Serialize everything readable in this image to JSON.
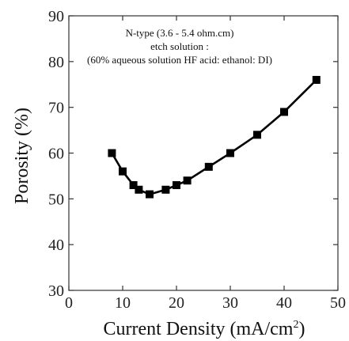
{
  "chart_data": {
    "type": "line",
    "title": "",
    "xlabel": "Current Density (mA/cm",
    "xlabel_sup": "2",
    "xlabel_close": ")",
    "ylabel": "Porosity (%)",
    "xlim": [
      0,
      50
    ],
    "ylim": [
      30,
      90
    ],
    "xticks": [
      0,
      10,
      20,
      30,
      40,
      50
    ],
    "yticks": [
      30,
      40,
      50,
      60,
      70,
      80,
      90
    ],
    "grid": false,
    "annotations": [
      "N-type  (3.6 - 5.4 ohm.cm)",
      "etch solution :",
      "(60% aqueous solution HF acid: ethanol: DI)"
    ],
    "series": [
      {
        "marker": "square",
        "color": "#000000",
        "x": [
          8,
          10,
          12,
          13,
          15,
          18,
          20,
          22,
          26,
          30,
          35,
          40,
          46
        ],
        "y": [
          60,
          56,
          53,
          52,
          51,
          52,
          53,
          54,
          57,
          60,
          64,
          69,
          76
        ]
      }
    ]
  }
}
